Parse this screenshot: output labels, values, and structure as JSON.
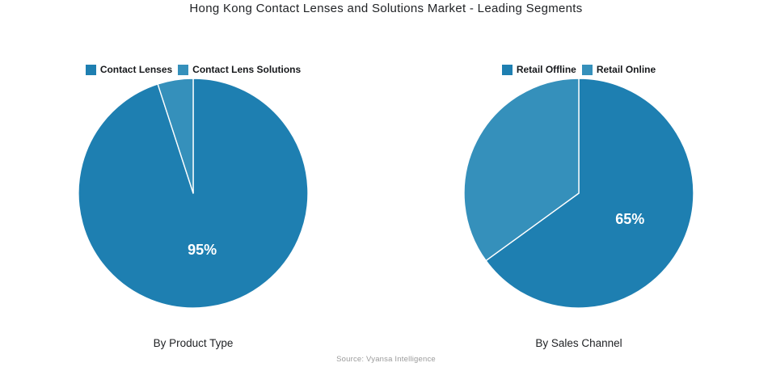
{
  "title": "Hong Kong Contact Lenses and Solutions Market - Leading Segments",
  "source": "Source: Vyansa Intelligence",
  "colors": {
    "primary": "#1e7fb1",
    "secondary": "#3590bb",
    "slice_label_text": "#ffffff",
    "background": "#ffffff"
  },
  "chart_data": [
    {
      "type": "pie",
      "title": "By Product Type",
      "legend_position": "top",
      "start_angle_deg": 0,
      "direction": "clockwise",
      "slices": [
        {
          "name": "Contact Lenses",
          "value": 95,
          "color": "#1e7fb1",
          "label": "95%"
        },
        {
          "name": "Contact Lens Solutions",
          "value": 5,
          "color": "#3590bb",
          "label": null
        }
      ]
    },
    {
      "type": "pie",
      "title": "By Sales Channel",
      "legend_position": "top",
      "start_angle_deg": 0,
      "direction": "clockwise",
      "slices": [
        {
          "name": "Retail Offline",
          "value": 65,
          "color": "#1e7fb1",
          "label": "65%"
        },
        {
          "name": "Retail Online",
          "value": 35,
          "color": "#3590bb",
          "label": null
        }
      ]
    }
  ]
}
